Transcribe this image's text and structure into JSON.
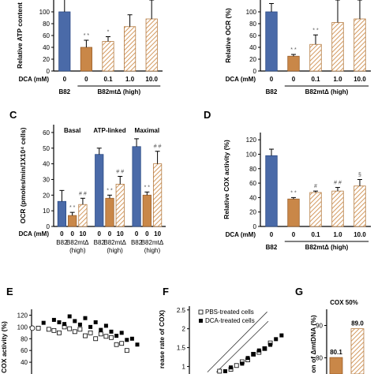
{
  "colors": {
    "blue": "#4a6aa8",
    "orange": "#c98748",
    "hatch": "#d49a60",
    "axis": "#000000",
    "err": "#000000"
  },
  "panels": {
    "A": {
      "ylabel": "Relative ATP content",
      "dca_label": "DCA (mM)"
    },
    "B": {
      "ylabel": "Relative OCR (%)",
      "dca_label": "DCA (mM)"
    },
    "C": {
      "letter": "C",
      "ylabel": "OCR (pmoles/min/1X10⁴ cells)",
      "dca_label": "DCA (mM)"
    },
    "D": {
      "letter": "D",
      "ylabel": "Relative COX activity (%)",
      "dca_label": "DCA (mM)"
    },
    "E": {
      "letter": "E",
      "ylabel": "COX activity (%)"
    },
    "F": {
      "letter": "F",
      "ylabel": "rease rate of COX)",
      "legend": [
        "PBS-treated cells",
        "DCA-treated cells"
      ]
    },
    "G": {
      "letter": "G",
      "ylabel": "on of ΔmtDNA (%)",
      "title": "COX 50%"
    }
  },
  "chart_data": [
    {
      "panel": "A",
      "type": "bar",
      "ylabel": "Relative ATP content",
      "ylim": [
        0,
        120
      ],
      "yticks": [
        0,
        20,
        40,
        60,
        80,
        100
      ],
      "categories": [
        "0",
        "0",
        "0.1",
        "1.0",
        "10.0"
      ],
      "groups": [
        "B82",
        "B82mtΔ (high)"
      ],
      "values": [
        100,
        40,
        50,
        75,
        88
      ],
      "errors": [
        22,
        12,
        8,
        20,
        32
      ],
      "annotations": [
        "",
        "* *",
        "*",
        "",
        ""
      ]
    },
    {
      "panel": "B",
      "type": "bar",
      "ylabel": "Relative OCR (%)",
      "ylim": [
        0,
        120
      ],
      "yticks": [
        0,
        20,
        40,
        60,
        80,
        100
      ],
      "categories": [
        "0",
        "0",
        "0.1",
        "1.0",
        "10.0"
      ],
      "groups": [
        "B82",
        "B82mtΔ (high)"
      ],
      "values": [
        100,
        25,
        45,
        82,
        88
      ],
      "errors": [
        14,
        3,
        16,
        38,
        32
      ],
      "annotations": [
        "",
        "* *",
        "* *",
        "",
        ""
      ]
    },
    {
      "panel": "C",
      "type": "bar",
      "ylabel": "OCR (pmoles/min/1X10⁴ cells)",
      "ylim": [
        0,
        65
      ],
      "yticks": [
        0,
        10,
        20,
        30,
        40,
        50,
        60
      ],
      "groups": [
        "Basal",
        "ATP-linked",
        "Maximal"
      ],
      "categories": [
        "0",
        "0",
        "10"
      ],
      "category_groups": [
        "B82",
        "B82mtΔ (high)"
      ],
      "series": [
        {
          "values": [
            16,
            7,
            14
          ],
          "errors": [
            7,
            2,
            4
          ],
          "annotations": [
            "",
            "* *",
            "# #"
          ]
        },
        {
          "values": [
            46,
            18,
            27
          ],
          "errors": [
            4,
            2,
            5
          ],
          "annotations": [
            "",
            "* *",
            "# #"
          ]
        },
        {
          "values": [
            51,
            20,
            40
          ],
          "errors": [
            5,
            2,
            8
          ],
          "annotations": [
            "",
            "* *",
            "# #"
          ]
        }
      ]
    },
    {
      "panel": "D",
      "type": "bar",
      "ylabel": "Relative COX activity (%)",
      "ylim": [
        0,
        130
      ],
      "yticks": [
        0,
        20,
        40,
        60,
        80,
        100,
        120
      ],
      "categories": [
        "0",
        "0",
        "0.1",
        "1.0",
        "10.0"
      ],
      "groups": [
        "B82",
        "B82mtΔ (high)"
      ],
      "values": [
        98,
        38,
        47,
        49,
        56
      ],
      "errors": [
        9,
        2,
        2,
        5,
        9
      ],
      "annotations": [
        "",
        "* *",
        "#",
        "# #",
        "§"
      ]
    },
    {
      "panel": "E",
      "type": "scatter",
      "ylabel": "COX activity (%)",
      "ylim": [
        20,
        130
      ],
      "yticks": [
        40,
        60,
        80,
        100,
        120,
        140
      ],
      "series": [
        {
          "name": "open",
          "x": [
            1,
            3,
            4,
            5,
            6,
            7,
            8,
            9,
            10,
            11,
            12,
            13,
            14,
            15,
            16,
            17,
            18
          ],
          "y": [
            98,
            96,
            94,
            90,
            100,
            97,
            92,
            96,
            85,
            90,
            80,
            88,
            84,
            82,
            70,
            72,
            60
          ]
        },
        {
          "name": "filled",
          "x": [
            2,
            4,
            5,
            6,
            7,
            8,
            9,
            10,
            11,
            12,
            13,
            14,
            15,
            16,
            17,
            18,
            19,
            20
          ],
          "y": [
            107,
            112,
            108,
            105,
            118,
            110,
            104,
            115,
            100,
            108,
            95,
            102,
            92,
            85,
            90,
            78,
            80,
            70
          ]
        }
      ]
    },
    {
      "panel": "F",
      "type": "scatter",
      "ylabel": "rease rate of COX)",
      "ylim": [
        0.8,
        2.6
      ],
      "yticks": [
        1.0,
        1.5,
        2.0,
        2.5
      ],
      "legend": [
        "PBS-treated cells",
        "DCA-treated cells"
      ],
      "series": [
        {
          "name": "PBS-treated cells",
          "x": [
            1,
            2,
            2.5,
            3,
            3.5,
            4,
            4.5,
            5,
            5.5
          ],
          "y": [
            1.0,
            1.05,
            1.15,
            1.25,
            1.3,
            1.45,
            1.5,
            1.6,
            1.75
          ]
        },
        {
          "name": "DCA-treated cells",
          "x": [
            1.5,
            2,
            3,
            3.5,
            4,
            4.5,
            5,
            5.5,
            6,
            6.5
          ],
          "y": [
            1.0,
            1.1,
            1.2,
            1.35,
            1.45,
            1.55,
            1.6,
            1.7,
            1.85,
            1.95
          ]
        }
      ]
    },
    {
      "panel": "G",
      "type": "bar",
      "title": "COX 50%",
      "ylabel": "on of ΔmtDNA (%)",
      "ylim": [
        75,
        95
      ],
      "yticks": [
        80,
        90
      ],
      "values": [
        80.1,
        89.0
      ],
      "labels": [
        "80.1",
        "89.0"
      ]
    }
  ]
}
